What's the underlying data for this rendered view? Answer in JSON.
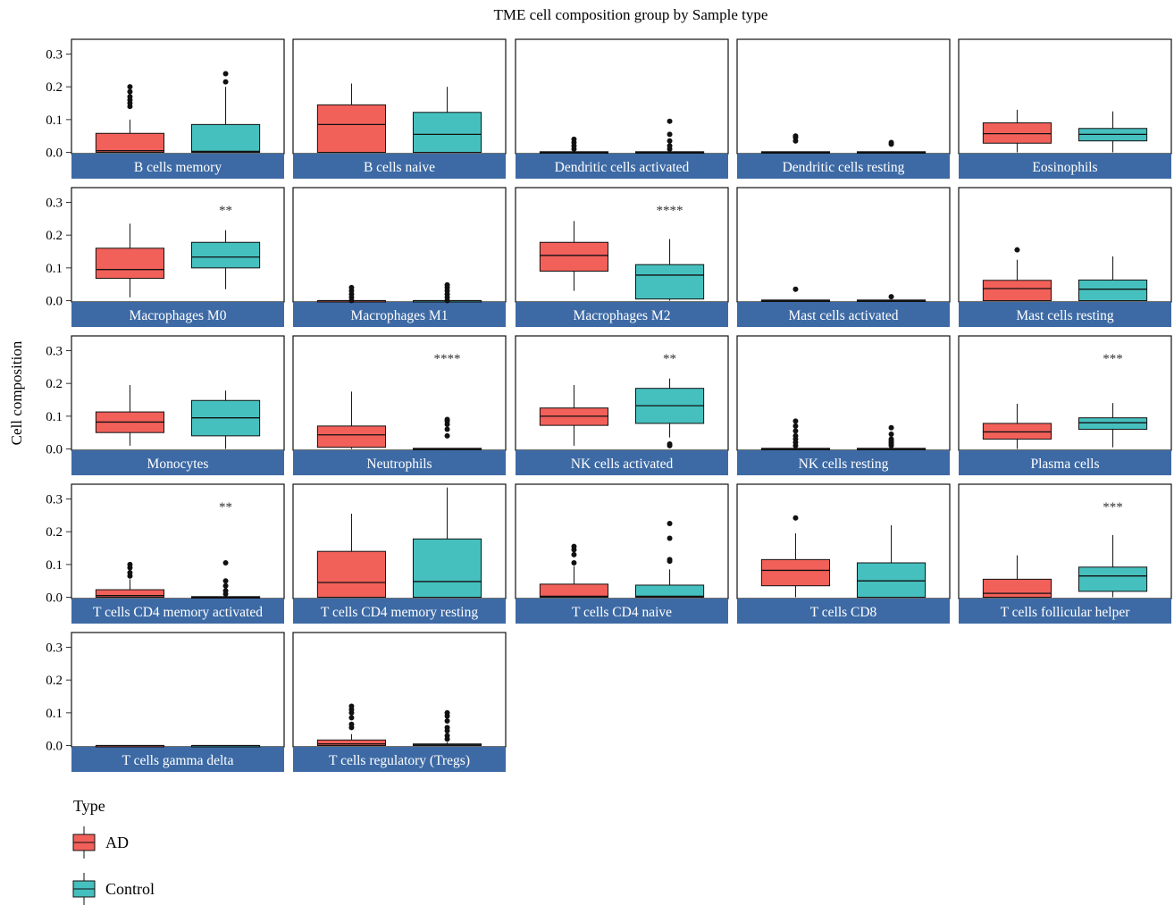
{
  "chart_data": {
    "type": "box",
    "title": "TME cell composition group by Sample type",
    "xlabel": "",
    "ylabel": "Cell composition",
    "ylim": [
      0,
      0.3
    ],
    "yticks": [
      "0.0",
      "0.1",
      "0.2",
      "0.3"
    ],
    "layout": "5 columns facet grid",
    "legend": {
      "title": "Type",
      "position": "bottom-left",
      "items": [
        {
          "label": "AD",
          "color": "#f2605a"
        },
        {
          "label": "Control",
          "color": "#45c0be"
        }
      ]
    },
    "colors": {
      "AD": "#f2605a",
      "Control": "#45c0be",
      "strip": "#3d6aa5"
    },
    "facets": [
      {
        "name": "B cells memory",
        "sig": "",
        "AD": {
          "q1": 0.0,
          "median": 0.005,
          "q3": 0.058,
          "lo": 0.0,
          "hi": 0.1,
          "out": [
            0.14,
            0.15,
            0.16,
            0.17,
            0.185,
            0.2
          ]
        },
        "Control": {
          "q1": 0.0,
          "median": 0.003,
          "q3": 0.085,
          "lo": 0.0,
          "hi": 0.2,
          "out": [
            0.215,
            0.24
          ]
        }
      },
      {
        "name": "B cells naive",
        "sig": "",
        "AD": {
          "q1": 0.0,
          "median": 0.085,
          "q3": 0.145,
          "lo": 0.0,
          "hi": 0.21,
          "out": []
        },
        "Control": {
          "q1": 0.0,
          "median": 0.055,
          "q3": 0.122,
          "lo": 0.0,
          "hi": 0.2,
          "out": []
        }
      },
      {
        "name": "Dendritic cells activated",
        "sig": "",
        "AD": {
          "q1": 0.0,
          "median": 0.0,
          "q3": 0.002,
          "lo": 0.0,
          "hi": 0.003,
          "out": [
            0.01,
            0.02,
            0.03,
            0.04
          ]
        },
        "Control": {
          "q1": 0.0,
          "median": 0.0,
          "q3": 0.002,
          "lo": 0.0,
          "hi": 0.003,
          "out": [
            0.01,
            0.02,
            0.035,
            0.055,
            0.095
          ]
        }
      },
      {
        "name": "Dendritic cells resting",
        "sig": "",
        "AD": {
          "q1": 0.0,
          "median": 0.0,
          "q3": 0.002,
          "lo": 0.0,
          "hi": 0.003,
          "out": [
            0.035,
            0.045,
            0.05
          ]
        },
        "Control": {
          "q1": 0.0,
          "median": 0.0,
          "q3": 0.002,
          "lo": 0.0,
          "hi": 0.003,
          "out": [
            0.025,
            0.03
          ]
        }
      },
      {
        "name": "Eosinophils",
        "sig": "",
        "AD": {
          "q1": 0.028,
          "median": 0.057,
          "q3": 0.09,
          "lo": 0.0,
          "hi": 0.13,
          "out": []
        },
        "Control": {
          "q1": 0.035,
          "median": 0.055,
          "q3": 0.073,
          "lo": 0.0,
          "hi": 0.125,
          "out": []
        }
      },
      {
        "name": "Macrophages M0",
        "sig": "",
        "AD": {
          "q1": 0.068,
          "median": 0.095,
          "q3": 0.16,
          "lo": 0.01,
          "hi": 0.235,
          "out": []
        },
        "Control": {
          "q1": 0.1,
          "median": 0.133,
          "q3": 0.178,
          "lo": 0.035,
          "hi": 0.215,
          "out": []
        }
      },
      {
        "name": "Macrophages M1",
        "sig": "",
        "AD": {
          "q1": 0.0,
          "median": 0.0,
          "q3": 0.0,
          "lo": 0.0,
          "hi": 0.0,
          "out": [
            0.0,
            0.01,
            0.02,
            0.03,
            0.04
          ]
        },
        "Control": {
          "q1": 0.0,
          "median": 0.0,
          "q3": 0.0,
          "lo": 0.0,
          "hi": 0.0,
          "out": [
            0.0,
            0.01,
            0.02,
            0.03,
            0.04,
            0.048
          ]
        }
      },
      {
        "name": "Macrophages M2",
        "sig": "****",
        "AD": {
          "q1": 0.09,
          "median": 0.138,
          "q3": 0.178,
          "lo": 0.03,
          "hi": 0.243,
          "out": []
        },
        "Control": {
          "q1": 0.005,
          "median": 0.078,
          "q3": 0.11,
          "lo": 0.0,
          "hi": 0.188,
          "out": []
        }
      },
      {
        "name": "Mast cells activated",
        "sig": "",
        "AD": {
          "q1": 0.0,
          "median": 0.0,
          "q3": 0.002,
          "lo": 0.0,
          "hi": 0.003,
          "out": [
            0.035
          ]
        },
        "Control": {
          "q1": 0.0,
          "median": 0.0,
          "q3": 0.002,
          "lo": 0.0,
          "hi": 0.003,
          "out": [
            0.012
          ]
        }
      },
      {
        "name": "Mast cells resting",
        "sig": "",
        "AD": {
          "q1": 0.0,
          "median": 0.037,
          "q3": 0.062,
          "lo": 0.0,
          "hi": 0.125,
          "out": [
            0.155
          ]
        },
        "Control": {
          "q1": 0.0,
          "median": 0.035,
          "q3": 0.063,
          "lo": 0.0,
          "hi": 0.135,
          "out": []
        }
      },
      {
        "name": "Monocytes",
        "sig": "",
        "AD": {
          "q1": 0.05,
          "median": 0.082,
          "q3": 0.113,
          "lo": 0.01,
          "hi": 0.195,
          "out": []
        },
        "Control": {
          "q1": 0.04,
          "median": 0.095,
          "q3": 0.148,
          "lo": 0.0,
          "hi": 0.178,
          "out": []
        }
      },
      {
        "name": "Neutrophils",
        "sig": "****",
        "AD": {
          "q1": 0.005,
          "median": 0.043,
          "q3": 0.07,
          "lo": 0.0,
          "hi": 0.175,
          "out": []
        },
        "Control": {
          "q1": 0.0,
          "median": 0.0,
          "q3": 0.002,
          "lo": 0.0,
          "hi": 0.003,
          "out": [
            0.04,
            0.06,
            0.075,
            0.085,
            0.09
          ]
        }
      },
      {
        "name": "NK cells activated",
        "sig": "**",
        "AD": {
          "q1": 0.072,
          "median": 0.1,
          "q3": 0.125,
          "lo": 0.01,
          "hi": 0.195,
          "out": []
        },
        "Control": {
          "q1": 0.078,
          "median": 0.132,
          "q3": 0.185,
          "lo": 0.035,
          "hi": 0.215,
          "out": [
            0.01,
            0.015
          ]
        }
      },
      {
        "name": "NK cells resting",
        "sig": "",
        "AD": {
          "q1": 0.0,
          "median": 0.0,
          "q3": 0.002,
          "lo": 0.0,
          "hi": 0.003,
          "out": [
            0.01,
            0.02,
            0.03,
            0.04,
            0.055,
            0.07,
            0.085
          ]
        },
        "Control": {
          "q1": 0.0,
          "median": 0.0,
          "q3": 0.002,
          "lo": 0.0,
          "hi": 0.003,
          "out": [
            0.01,
            0.015,
            0.02,
            0.025,
            0.03,
            0.045,
            0.065
          ]
        }
      },
      {
        "name": "Plasma cells",
        "sig": "***",
        "AD": {
          "q1": 0.03,
          "median": 0.052,
          "q3": 0.078,
          "lo": 0.0,
          "hi": 0.138,
          "out": []
        },
        "Control": {
          "q1": 0.06,
          "median": 0.08,
          "q3": 0.095,
          "lo": 0.005,
          "hi": 0.14,
          "out": []
        }
      },
      {
        "name": "T cells CD4 memory activated",
        "sig": "",
        "AD": {
          "q1": 0.0,
          "median": 0.005,
          "q3": 0.023,
          "lo": 0.0,
          "hi": 0.055,
          "out": [
            0.065,
            0.075,
            0.09,
            0.1
          ]
        },
        "Control": {
          "q1": 0.0,
          "median": 0.0,
          "q3": 0.002,
          "lo": 0.0,
          "hi": 0.003,
          "out": [
            0.01,
            0.02,
            0.035,
            0.05,
            0.105
          ]
        }
      },
      {
        "name": "T cells CD4 memory resting",
        "sig": "",
        "AD": {
          "q1": 0.0,
          "median": 0.045,
          "q3": 0.14,
          "lo": 0.0,
          "hi": 0.255,
          "out": []
        },
        "Control": {
          "q1": 0.0,
          "median": 0.048,
          "q3": 0.178,
          "lo": 0.0,
          "hi": 0.335,
          "out": []
        }
      },
      {
        "name": "T cells CD4 naive",
        "sig": "",
        "AD": {
          "q1": 0.0,
          "median": 0.003,
          "q3": 0.04,
          "lo": 0.0,
          "hi": 0.095,
          "out": [
            0.105,
            0.13,
            0.145,
            0.155
          ]
        },
        "Control": {
          "q1": 0.0,
          "median": 0.003,
          "q3": 0.037,
          "lo": 0.0,
          "hi": 0.085,
          "out": [
            0.11,
            0.115,
            0.18,
            0.225
          ]
        }
      },
      {
        "name": "T cells CD8",
        "sig": "",
        "AD": {
          "q1": 0.035,
          "median": 0.082,
          "q3": 0.115,
          "lo": 0.0,
          "hi": 0.195,
          "out": [
            0.242
          ]
        },
        "Control": {
          "q1": 0.0,
          "median": 0.05,
          "q3": 0.105,
          "lo": 0.0,
          "hi": 0.22,
          "out": []
        }
      },
      {
        "name": "T cells follicular helper",
        "sig": "***",
        "AD": {
          "q1": 0.0,
          "median": 0.012,
          "q3": 0.055,
          "lo": 0.0,
          "hi": 0.128,
          "out": []
        },
        "Control": {
          "q1": 0.018,
          "median": 0.065,
          "q3": 0.092,
          "lo": 0.0,
          "hi": 0.19,
          "out": []
        }
      },
      {
        "name": "T cells gamma delta",
        "sig": "",
        "AD": {
          "q1": 0.0,
          "median": 0.0,
          "q3": 0.0,
          "lo": 0.0,
          "hi": 0.0,
          "out": []
        },
        "Control": {
          "q1": 0.0,
          "median": 0.0,
          "q3": 0.0,
          "lo": 0.0,
          "hi": 0.0,
          "out": []
        }
      },
      {
        "name": "T cells regulatory (Tregs)",
        "sig": "",
        "AD": {
          "q1": 0.0,
          "median": 0.005,
          "q3": 0.017,
          "lo": 0.0,
          "hi": 0.035,
          "out": [
            0.055,
            0.065,
            0.085,
            0.1,
            0.11,
            0.12
          ]
        },
        "Control": {
          "q1": 0.0,
          "median": 0.002,
          "q3": 0.005,
          "lo": 0.0,
          "hi": 0.01,
          "out": [
            0.02,
            0.03,
            0.045,
            0.055,
            0.075,
            0.09,
            0.1
          ]
        }
      }
    ]
  },
  "sig_labels_overlay": [
    {
      "facet": "Macrophages M0",
      "sig": "**"
    },
    {
      "facet": "T cells CD4 memory activated",
      "sig": "**"
    }
  ]
}
